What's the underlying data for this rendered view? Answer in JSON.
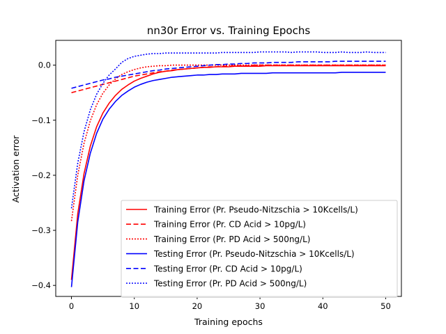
{
  "chart_data": {
    "type": "line",
    "title": "nn30r Error vs. Training Epochs",
    "xlabel": "Training epochs",
    "ylabel": "Activation error",
    "xlim": [
      -2.5,
      52.5
    ],
    "ylim": [
      -0.42,
      0.045
    ],
    "xticks": [
      0,
      10,
      20,
      30,
      40,
      50
    ],
    "xtick_labels": [
      "0",
      "10",
      "20",
      "30",
      "40",
      "50"
    ],
    "yticks": [
      -0.4,
      -0.3,
      -0.2,
      -0.1,
      0.0
    ],
    "ytick_labels": [
      "−0.4",
      "−0.3",
      "−0.2",
      "−0.1",
      "0.0"
    ],
    "grid": false,
    "legend_position": "lower-right",
    "x": [
      0,
      1,
      2,
      3,
      4,
      5,
      6,
      7,
      8,
      9,
      10,
      11,
      12,
      13,
      14,
      15,
      16,
      17,
      18,
      19,
      20,
      21,
      22,
      23,
      24,
      25,
      26,
      27,
      28,
      29,
      30,
      31,
      32,
      33,
      34,
      35,
      36,
      37,
      38,
      39,
      40,
      41,
      42,
      43,
      44,
      45,
      46,
      47,
      48,
      49,
      50
    ],
    "series": [
      {
        "name": "Training Error (Pr. Pseudo-Nitzschia > 10Kcells/L)",
        "color": "#ff0000",
        "dash": "solid",
        "values": [
          -0.39,
          -0.27,
          -0.197,
          -0.147,
          -0.112,
          -0.087,
          -0.069,
          -0.055,
          -0.044,
          -0.036,
          -0.029,
          -0.024,
          -0.02,
          -0.016,
          -0.013,
          -0.011,
          -0.01,
          -0.008,
          -0.007,
          -0.006,
          -0.005,
          -0.004,
          -0.004,
          -0.003,
          -0.003,
          -0.003,
          -0.002,
          -0.002,
          -0.002,
          -0.002,
          -0.002,
          -0.001,
          -0.001,
          -0.001,
          -0.001,
          -0.001,
          -0.001,
          -0.001,
          -0.001,
          -0.001,
          -0.001,
          -0.001,
          -0.001,
          -0.001,
          -0.001,
          -0.001,
          -0.001,
          -0.001,
          -0.001,
          -0.001,
          -0.001
        ]
      },
      {
        "name": "Training Error (Pr. CD Acid > 10pg/L)",
        "color": "#ff0000",
        "dash": "dashed",
        "values": [
          -0.05,
          -0.047,
          -0.044,
          -0.041,
          -0.038,
          -0.035,
          -0.032,
          -0.029,
          -0.026,
          -0.023,
          -0.02,
          -0.018,
          -0.016,
          -0.014,
          -0.012,
          -0.011,
          -0.009,
          -0.008,
          -0.007,
          -0.006,
          -0.005,
          -0.004,
          -0.003,
          -0.003,
          -0.002,
          -0.002,
          -0.001,
          -0.001,
          -0.001,
          0.0,
          0.0,
          0.0,
          0.0,
          0.0,
          0.0,
          0.0,
          0.0,
          0.0,
          0.0,
          0.0,
          0.0,
          0.0,
          0.0,
          0.0,
          0.0,
          0.0,
          0.0,
          0.0,
          0.0,
          0.0,
          0.0
        ]
      },
      {
        "name": "Training Error (Pr. PD Acid > 500ng/L)",
        "color": "#ff0000",
        "dash": "dotted",
        "values": [
          -0.283,
          -0.2,
          -0.142,
          -0.101,
          -0.072,
          -0.051,
          -0.036,
          -0.025,
          -0.017,
          -0.012,
          -0.008,
          -0.005,
          -0.003,
          -0.002,
          -0.001,
          -0.001,
          0.0,
          0.0,
          0.0,
          0.0,
          0.0,
          0.0,
          0.0,
          0.0,
          0.0,
          0.0,
          0.0,
          0.0,
          0.0,
          0.0,
          0.0,
          0.0,
          0.0,
          0.0,
          0.0,
          0.0,
          0.0,
          0.0,
          0.0,
          0.0,
          0.0,
          0.0,
          0.0,
          0.0,
          0.0,
          0.0,
          0.0,
          0.0,
          0.0,
          0.0,
          0.0
        ]
      },
      {
        "name": "Testing Error (Pr. Pseudo-Nitzschia > 10Kcells/L)",
        "color": "#0000ff",
        "dash": "solid",
        "values": [
          -0.403,
          -0.285,
          -0.21,
          -0.16,
          -0.124,
          -0.098,
          -0.08,
          -0.066,
          -0.055,
          -0.047,
          -0.04,
          -0.035,
          -0.031,
          -0.028,
          -0.026,
          -0.024,
          -0.022,
          -0.021,
          -0.02,
          -0.019,
          -0.018,
          -0.018,
          -0.017,
          -0.017,
          -0.016,
          -0.016,
          -0.016,
          -0.015,
          -0.015,
          -0.015,
          -0.015,
          -0.015,
          -0.014,
          -0.014,
          -0.014,
          -0.014,
          -0.014,
          -0.014,
          -0.014,
          -0.014,
          -0.014,
          -0.014,
          -0.014,
          -0.013,
          -0.013,
          -0.013,
          -0.013,
          -0.013,
          -0.013,
          -0.013,
          -0.013
        ]
      },
      {
        "name": "Testing Error (Pr. CD Acid > 10pg/L)",
        "color": "#0000ff",
        "dash": "dashed",
        "values": [
          -0.042,
          -0.039,
          -0.036,
          -0.033,
          -0.03,
          -0.027,
          -0.025,
          -0.022,
          -0.02,
          -0.018,
          -0.016,
          -0.014,
          -0.012,
          -0.01,
          -0.009,
          -0.007,
          -0.006,
          -0.005,
          -0.004,
          -0.003,
          -0.002,
          -0.001,
          0.0,
          0.001,
          0.001,
          0.002,
          0.002,
          0.003,
          0.003,
          0.004,
          0.004,
          0.004,
          0.005,
          0.005,
          0.005,
          0.005,
          0.006,
          0.006,
          0.006,
          0.006,
          0.006,
          0.006,
          0.007,
          0.007,
          0.007,
          0.007,
          0.007,
          0.007,
          0.007,
          0.007,
          0.007
        ]
      },
      {
        "name": "Testing Error (Pr. PD Acid > 500ng/L)",
        "color": "#0000ff",
        "dash": "dotted",
        "values": [
          -0.26,
          -0.178,
          -0.121,
          -0.081,
          -0.053,
          -0.033,
          -0.018,
          -0.007,
          0.005,
          0.012,
          0.016,
          0.018,
          0.02,
          0.021,
          0.021,
          0.022,
          0.022,
          0.022,
          0.022,
          0.022,
          0.022,
          0.022,
          0.022,
          0.022,
          0.023,
          0.023,
          0.023,
          0.023,
          0.023,
          0.023,
          0.024,
          0.024,
          0.024,
          0.024,
          0.024,
          0.023,
          0.024,
          0.024,
          0.024,
          0.024,
          0.023,
          0.023,
          0.023,
          0.024,
          0.023,
          0.023,
          0.023,
          0.024,
          0.023,
          0.023,
          0.023
        ]
      }
    ]
  }
}
